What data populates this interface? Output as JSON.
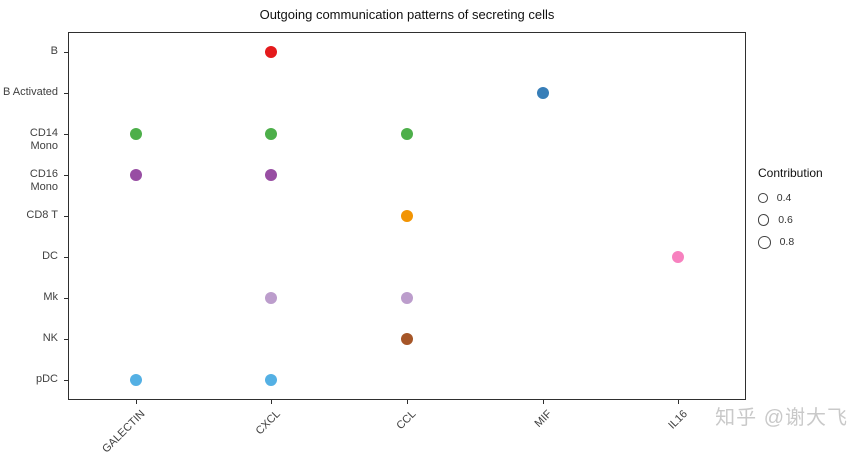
{
  "title": "Outgoing communication patterns of secreting cells",
  "watermark": "知乎 @谢大飞",
  "chart_data": {
    "type": "scatter",
    "subtype": "categorical-dot-plot",
    "title": "Outgoing communication patterns of secreting cells",
    "xlabel": "",
    "ylabel": "",
    "grid": false,
    "x_categories": [
      "GALECTIN",
      "CXCL",
      "CCL",
      "MIF",
      "IL16"
    ],
    "y_categories": [
      "B",
      "B Activated",
      "CD14 Mono",
      "CD16 Mono",
      "CD8 T",
      "DC",
      "Mk",
      "NK",
      "pDC"
    ],
    "cell_colors": {
      "B": "#E41A1C",
      "B Activated": "#377EB8",
      "CD14 Mono": "#4DAF4A",
      "CD16 Mono": "#984EA3",
      "CD8 T": "#F29403",
      "DC": "#F781BF",
      "Mk": "#BC9DCC",
      "NK": "#A65628",
      "pDC": "#54B0E4"
    },
    "points": [
      {
        "x": "CXCL",
        "y": "B",
        "color": "#E41A1C",
        "contribution": 1
      },
      {
        "x": "MIF",
        "y": "B Activated",
        "color": "#377EB8",
        "contribution": 1
      },
      {
        "x": "GALECTIN",
        "y": "CD14 Mono",
        "color": "#4DAF4A",
        "contribution": 1
      },
      {
        "x": "CXCL",
        "y": "CD14 Mono",
        "color": "#4DAF4A",
        "contribution": 1
      },
      {
        "x": "CCL",
        "y": "CD14 Mono",
        "color": "#4DAF4A",
        "contribution": 1
      },
      {
        "x": "GALECTIN",
        "y": "CD16 Mono",
        "color": "#984EA3",
        "contribution": 1
      },
      {
        "x": "CXCL",
        "y": "CD16 Mono",
        "color": "#984EA3",
        "contribution": 1
      },
      {
        "x": "CCL",
        "y": "CD8 T",
        "color": "#F29403",
        "contribution": 1
      },
      {
        "x": "IL16",
        "y": "DC",
        "color": "#F781BF",
        "contribution": 1
      },
      {
        "x": "CXCL",
        "y": "Mk",
        "color": "#BC9DCC",
        "contribution": 1
      },
      {
        "x": "CCL",
        "y": "Mk",
        "color": "#BC9DCC",
        "contribution": 1
      },
      {
        "x": "CCL",
        "y": "NK",
        "color": "#A65628",
        "contribution": 1
      },
      {
        "x": "GALECTIN",
        "y": "pDC",
        "color": "#54B0E4",
        "contribution": 1
      },
      {
        "x": "CXCL",
        "y": "pDC",
        "color": "#54B0E4",
        "contribution": 1
      }
    ],
    "legend": {
      "title": "Contribution",
      "sizes": [
        0.4,
        0.6,
        0.8
      ],
      "position": "right"
    }
  }
}
